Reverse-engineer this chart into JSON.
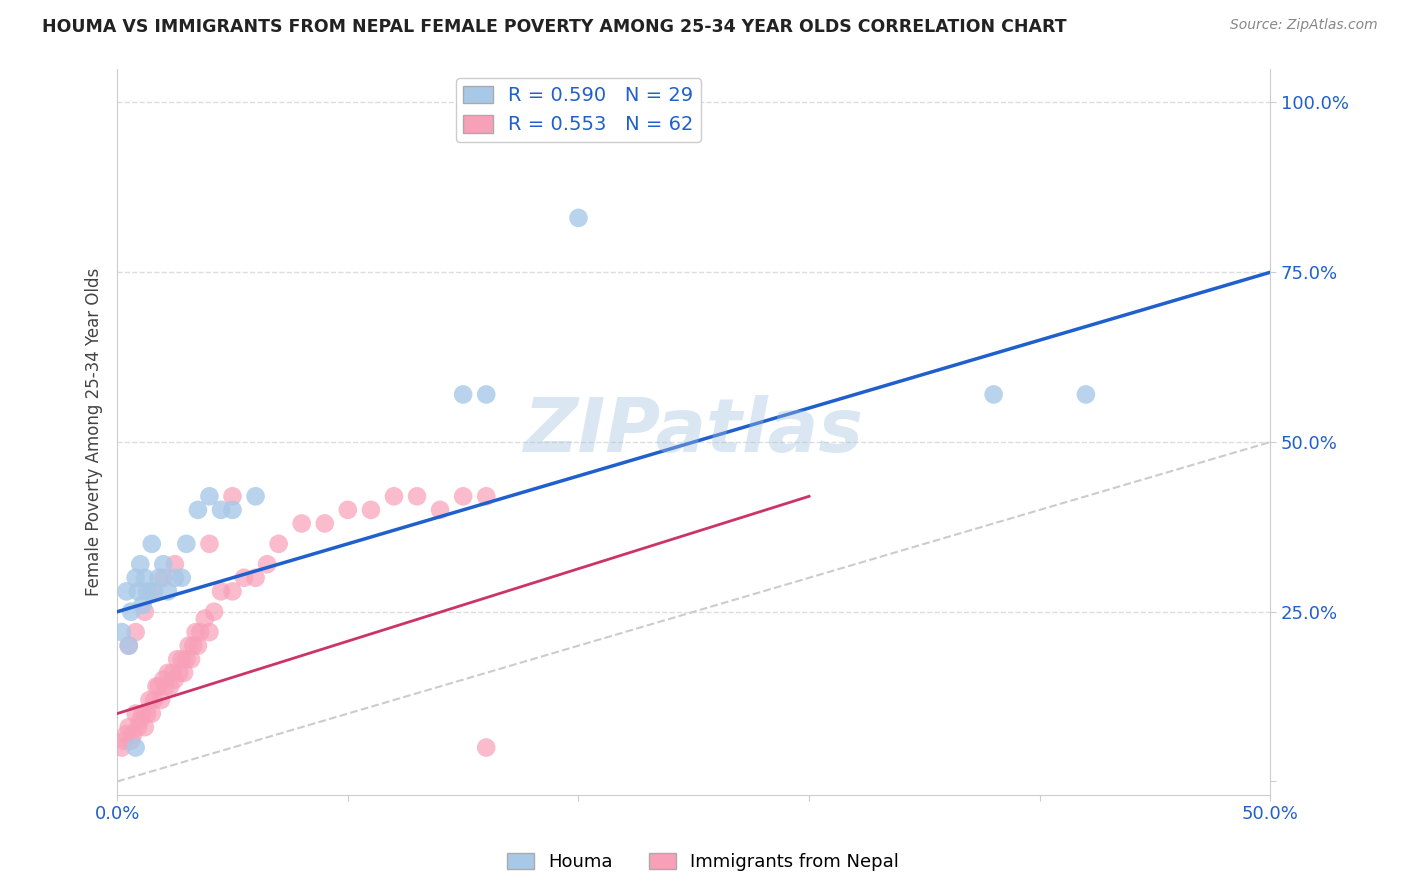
{
  "title": "HOUMA VS IMMIGRANTS FROM NEPAL FEMALE POVERTY AMONG 25-34 YEAR OLDS CORRELATION CHART",
  "source": "Source: ZipAtlas.com",
  "ylabel": "Female Poverty Among 25-34 Year Olds",
  "xlim": [
    0.0,
    0.5
  ],
  "ylim": [
    -0.02,
    1.05
  ],
  "houma_R": 0.59,
  "houma_N": 29,
  "nepal_R": 0.553,
  "nepal_N": 62,
  "houma_color": "#a8c8e8",
  "houma_line_color": "#2060cc",
  "nepal_color": "#f8a0b8",
  "nepal_line_color": "#cc3366",
  "diagonal_color": "#cccccc",
  "watermark": "ZIPatlas",
  "houma_x": [
    0.002,
    0.004,
    0.005,
    0.006,
    0.008,
    0.009,
    0.01,
    0.011,
    0.012,
    0.013,
    0.015,
    0.016,
    0.018,
    0.02,
    0.022,
    0.025,
    0.028,
    0.03,
    0.035,
    0.04,
    0.045,
    0.05,
    0.06,
    0.15,
    0.16,
    0.38,
    0.42,
    0.008,
    0.2
  ],
  "houma_y": [
    0.22,
    0.28,
    0.2,
    0.25,
    0.3,
    0.28,
    0.32,
    0.26,
    0.3,
    0.28,
    0.35,
    0.28,
    0.3,
    0.32,
    0.28,
    0.3,
    0.3,
    0.35,
    0.4,
    0.42,
    0.4,
    0.4,
    0.42,
    0.57,
    0.57,
    0.57,
    0.57,
    0.05,
    0.83
  ],
  "nepal_x": [
    0.002,
    0.003,
    0.004,
    0.005,
    0.006,
    0.007,
    0.008,
    0.009,
    0.01,
    0.011,
    0.012,
    0.013,
    0.014,
    0.015,
    0.016,
    0.017,
    0.018,
    0.019,
    0.02,
    0.021,
    0.022,
    0.023,
    0.024,
    0.025,
    0.026,
    0.027,
    0.028,
    0.029,
    0.03,
    0.031,
    0.032,
    0.033,
    0.034,
    0.035,
    0.036,
    0.038,
    0.04,
    0.042,
    0.045,
    0.05,
    0.055,
    0.06,
    0.065,
    0.07,
    0.08,
    0.09,
    0.1,
    0.11,
    0.12,
    0.13,
    0.14,
    0.15,
    0.16,
    0.005,
    0.008,
    0.012,
    0.015,
    0.02,
    0.025,
    0.04,
    0.05,
    0.16
  ],
  "nepal_y": [
    0.05,
    0.06,
    0.07,
    0.08,
    0.06,
    0.07,
    0.1,
    0.08,
    0.09,
    0.1,
    0.08,
    0.1,
    0.12,
    0.1,
    0.12,
    0.14,
    0.14,
    0.12,
    0.15,
    0.14,
    0.16,
    0.14,
    0.16,
    0.15,
    0.18,
    0.16,
    0.18,
    0.16,
    0.18,
    0.2,
    0.18,
    0.2,
    0.22,
    0.2,
    0.22,
    0.24,
    0.22,
    0.25,
    0.28,
    0.28,
    0.3,
    0.3,
    0.32,
    0.35,
    0.38,
    0.38,
    0.4,
    0.4,
    0.42,
    0.42,
    0.4,
    0.42,
    0.42,
    0.2,
    0.22,
    0.25,
    0.28,
    0.3,
    0.32,
    0.35,
    0.42,
    0.05
  ],
  "legend_label1": "Houma",
  "legend_label2": "Immigrants from Nepal",
  "title_color": "#222222",
  "axis_color": "#2060cc",
  "tick_color": "#2060cc",
  "background_color": "#ffffff",
  "grid_color": "#dddddd",
  "houma_line_x0": 0.0,
  "houma_line_y0": 0.25,
  "houma_line_x1": 0.5,
  "houma_line_y1": 0.75,
  "nepal_line_x0": 0.0,
  "nepal_line_y0": 0.1,
  "nepal_line_x1": 0.3,
  "nepal_line_y1": 0.42
}
